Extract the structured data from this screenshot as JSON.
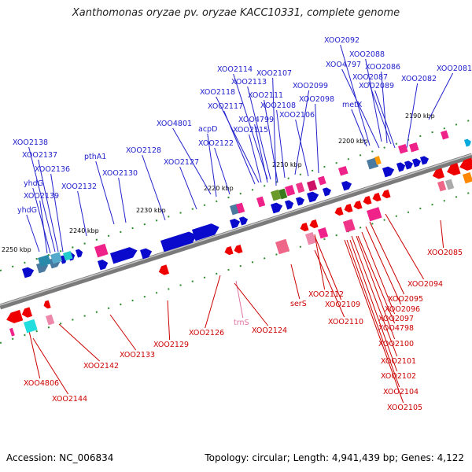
{
  "title": "Xanthomonas oryzae pv. oryzae KACC10331, complete genome",
  "footer": {
    "accession": "Accession: NC_006834",
    "topology": "Topology: circular; Length: 4,941,439 bp; Genes: 4,122"
  },
  "ticks": [
    "2190 kbp",
    "2200 kbp",
    "2210 kbp",
    "2220 kbp",
    "2230 kbp",
    "2240 kbp",
    "2250 kbp"
  ],
  "genes_top": [
    "XOO2092",
    "XOO2088",
    "XOO4797",
    "XOO2086",
    "XOO2087",
    "XOO2089",
    "XOO2082",
    "XOO2081",
    "XOO2114",
    "XOO2107",
    "XOO2113",
    "XOO2099",
    "XOO2118",
    "XOO2111",
    "XOO2098",
    "XOO2117",
    "XOO2108",
    "metX",
    "XOO4799",
    "XOO2106",
    "XOO4801",
    "acpD",
    "XOO2115",
    "XOO2122",
    "XOO2138",
    "XOO2128",
    "XOO2137",
    "pthA1",
    "XOO2127",
    "XOO2136",
    "XOO2130",
    "yhdG",
    "XOO2132",
    "XOO2139",
    "yhdG"
  ],
  "genes_bottom": [
    "XOO2085",
    "XOO2094",
    "XOO2112",
    "XOO2095",
    "serS",
    "XOO2109",
    "XOO2096",
    "XOO2097",
    "XOO2110",
    "trnS",
    "XOO4798",
    "XOO2126",
    "XOO2124",
    "XOO2129",
    "XOO2100",
    "XOO2133",
    "XOO2101",
    "XOO2142",
    "XOO2102",
    "XOO4806",
    "XOO2104",
    "XOO2144",
    "XOO2105"
  ]
}
